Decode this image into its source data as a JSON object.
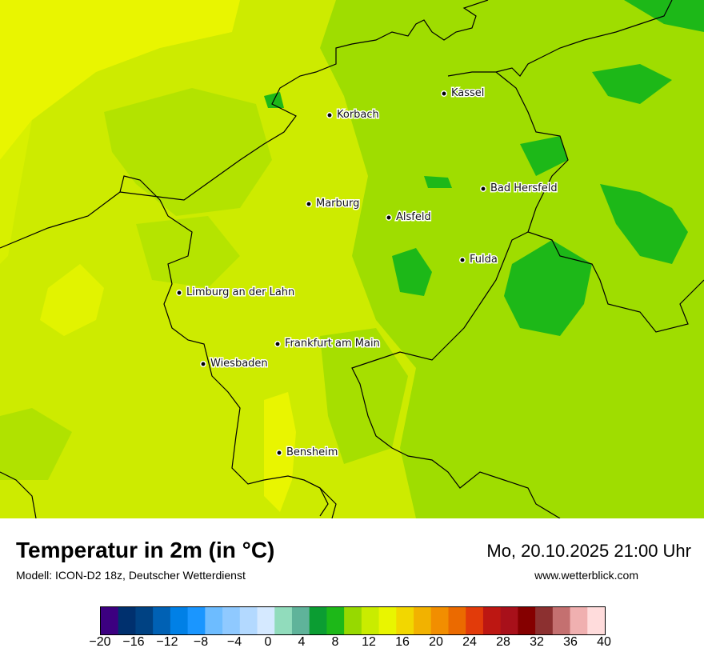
{
  "map": {
    "cities": [
      {
        "name": "Kassel"
      },
      {
        "name": "Korbach"
      },
      {
        "name": "Bad Hersfeld"
      },
      {
        "name": "Marburg"
      },
      {
        "name": "Alsfeld"
      },
      {
        "name": "Fulda"
      },
      {
        "name": "Limburg an der Lahn"
      },
      {
        "name": "Frankfurt am Main"
      },
      {
        "name": "Wiesbaden"
      },
      {
        "name": "Bensheim"
      }
    ]
  },
  "footer": {
    "title": "Temperatur in 2m (in °C)",
    "subtitle": "Modell: ICON-D2 18z, Deutscher Wetterdienst",
    "datetime": "Mo, 20.10.2025 21:00 Uhr",
    "website": "www.wetterblick.com"
  },
  "legend": {
    "colors": [
      "#3c0080",
      "#00306e",
      "#004283",
      "#0061b4",
      "#0080e6",
      "#1a96ff",
      "#6dbcff",
      "#8fc9ff",
      "#b3d9ff",
      "#d5e9ff",
      "#91dcbc",
      "#5fb39a",
      "#0b9d32",
      "#1db818",
      "#97d900",
      "#c9ec00",
      "#e9f500",
      "#f2d700",
      "#f2b200",
      "#f28e00",
      "#eb6a00",
      "#e23b0a",
      "#bd1712",
      "#a8101a",
      "#850000",
      "#8c3030",
      "#c47070",
      "#f0b0b0",
      "#ffdcdc"
    ],
    "tick_labels": [
      "−20",
      "−16",
      "−12",
      "−8",
      "−4",
      "0",
      "4",
      "8",
      "12",
      "16",
      "20",
      "24",
      "28",
      "32",
      "36",
      "40"
    ]
  }
}
